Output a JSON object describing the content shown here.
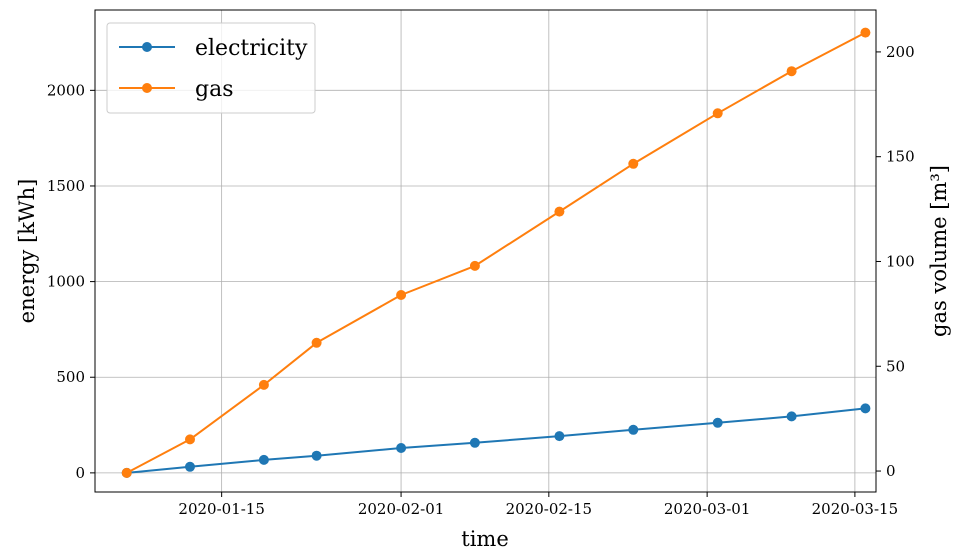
{
  "chart_data": {
    "type": "line",
    "xlabel": "time",
    "ylabel": "energy [kWh]",
    "y2label": "gas volume [m³]",
    "x_tick_labels": [
      "2020-01-15",
      "2020-02-01",
      "2020-02-15",
      "2020-03-01",
      "2020-03-15"
    ],
    "x_ticks": [
      "2020-01-15",
      "2020-02-01",
      "2020-02-15",
      "2020-03-01",
      "2020-03-15"
    ],
    "xlim": [
      "2020-01-03",
      "2020-03-17"
    ],
    "y_ticks": [
      0,
      500,
      1000,
      1500,
      2000
    ],
    "ylim": [
      -100,
      2420
    ],
    "y2_ticks": [
      0,
      50,
      100,
      150,
      200
    ],
    "y2lim": [
      -10,
      220
    ],
    "grid": true,
    "legend_position": "upper-left",
    "x": [
      "2020-01-06",
      "2020-01-12",
      "2020-01-19",
      "2020-01-24",
      "2020-02-01",
      "2020-02-08",
      "2020-02-16",
      "2020-02-23",
      "2020-03-02",
      "2020-03-09",
      "2020-03-16"
    ],
    "series": [
      {
        "name": "electricity",
        "axis": "left",
        "color": "#1f77b4",
        "values": [
          0,
          32,
          68,
          90,
          130,
          157,
          192,
          225,
          262,
          295,
          337
        ]
      },
      {
        "name": "gas",
        "axis": "left",
        "color": "#ff7f0e",
        "values": [
          0,
          175,
          460,
          680,
          930,
          1082,
          1366,
          1616,
          1880,
          2100,
          2302
        ]
      }
    ]
  }
}
